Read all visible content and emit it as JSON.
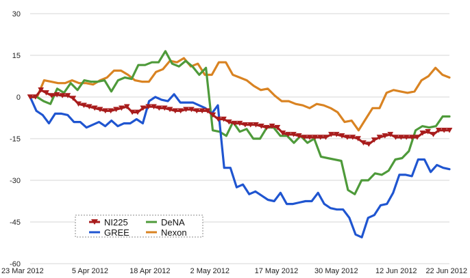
{
  "chart_data": {
    "type": "line",
    "title": "",
    "xlabel": "",
    "ylabel": "",
    "ylim": [
      -60,
      30
    ],
    "yticks": [
      30,
      15,
      0,
      -15,
      -30,
      -45,
      -60
    ],
    "ytick_labels": [
      "30",
      "15",
      "0",
      "-15",
      "-30",
      "-45",
      "-60"
    ],
    "xtick_labels": [
      "23 Mar 2012",
      "5 Apr 2012",
      "18 Apr 2012",
      "2 May 2012",
      "17 May 2012",
      "30 May 2012",
      "12 Jun 2012",
      "22 Jun 2012"
    ],
    "xtick_positions": [
      0,
      9,
      18,
      27,
      37,
      46,
      55,
      62
    ],
    "grid": "horizontal",
    "legend_position": "bottom-left",
    "series": [
      {
        "name": "NI225",
        "color": "#a81c1c",
        "marker": "triangle-down",
        "values": [
          0,
          0,
          2.5,
          1.5,
          0.5,
          0.8,
          0.5,
          0.5,
          -0.5,
          -2.5,
          -3,
          -3.5,
          -4,
          -4.5,
          -5,
          -5,
          -4.5,
          -4,
          -3.5,
          -5.5,
          -5.5,
          -4,
          -3.5,
          -3.5,
          -4,
          -4,
          -4.5,
          -5,
          -5,
          -4.5,
          -4.5,
          -5,
          -5,
          -5,
          -6.5,
          -8,
          -8,
          -9,
          -9.5,
          -9.5,
          -10,
          -10,
          -10,
          -10.5,
          -11,
          -10.5,
          -11,
          -13,
          -13.5,
          -13.5,
          -14,
          -14.5,
          -14.5,
          -14.5,
          -14.5,
          -14.5,
          -13.5,
          -13.5,
          -14,
          -14.5,
          -14.5,
          -15,
          -16.5,
          -17,
          -15.5,
          -14.5,
          -14,
          -13.5,
          -14.5,
          -14.5,
          -14.5,
          -14.5,
          -14.5,
          -13,
          -12.5,
          -13.5,
          -12,
          -12,
          -12
        ]
      },
      {
        "name": "GREE",
        "color": "#1f55d0",
        "marker": "none",
        "values": [
          0,
          -5,
          -6.5,
          -9.5,
          -6,
          -6,
          -6.5,
          -9,
          -9,
          -11,
          -10,
          -9,
          -10.5,
          -8.5,
          -10.5,
          -9.5,
          -9.5,
          -8,
          -9.5,
          -1.5,
          0,
          -1,
          -1.5,
          1,
          -2,
          -2,
          -2,
          -3,
          -4,
          -6,
          -3,
          -25.5,
          -25.5,
          -32.5,
          -31.5,
          -35,
          -34,
          -35.5,
          -37,
          -37.5,
          -34.5,
          -38.5,
          -38.5,
          -38,
          -37.5,
          -37.5,
          -34.5,
          -38.5,
          -40,
          -40.5,
          -40.5,
          -43.5,
          -49.5,
          -50.5,
          -43.5,
          -42.5,
          -39,
          -38.5,
          -34.5,
          -28,
          -28,
          -28.5,
          -22.5,
          -22.5,
          -27,
          -24.5,
          -25.5,
          -26
        ]
      },
      {
        "name": "DeNA",
        "color": "#4e9a3a",
        "marker": "none",
        "values": [
          0,
          0,
          -1.5,
          -2.5,
          3,
          1.5,
          5,
          2.5,
          6,
          5.5,
          5.5,
          6,
          2,
          6,
          7,
          6.5,
          11.5,
          11.5,
          12.5,
          12.5,
          16.5,
          12,
          11,
          13,
          11,
          8,
          10.5,
          -12,
          -12.5,
          -14,
          -9,
          -12.5,
          -11.5,
          -15,
          -15,
          -11,
          -11,
          -14,
          -14,
          -16.5,
          -14,
          -16.5,
          -15,
          -21.5,
          -22,
          -22.5,
          -23,
          -33.5,
          -35,
          -30,
          -30,
          -27.5,
          -28,
          -26.5,
          -22.5,
          -22,
          -19.5,
          -12,
          -10.5,
          -11,
          -10.5,
          -7,
          -7
        ]
      },
      {
        "name": "Nexon",
        "color": "#d98322",
        "marker": "none",
        "values": [
          0,
          0,
          6,
          5.5,
          5,
          5,
          6,
          5,
          5,
          4.5,
          6,
          7,
          9.5,
          9.5,
          8,
          6,
          5.5,
          5.5,
          9,
          10,
          13,
          12.5,
          14,
          11,
          12,
          8,
          8,
          12.5,
          12.5,
          8,
          7,
          6,
          4,
          2.5,
          3,
          0.5,
          -1.5,
          -1.5,
          -2.5,
          -3,
          -4,
          -2.5,
          -3,
          -4,
          -5.5,
          -9,
          -8.5,
          -12,
          -8,
          -4,
          -4,
          1.5,
          2.5,
          2,
          1.5,
          2,
          6,
          7.5,
          10.5,
          8,
          7
        ]
      }
    ]
  },
  "legend": {
    "items": [
      "NI225",
      "DeNA",
      "GREE",
      "Nexon"
    ]
  }
}
